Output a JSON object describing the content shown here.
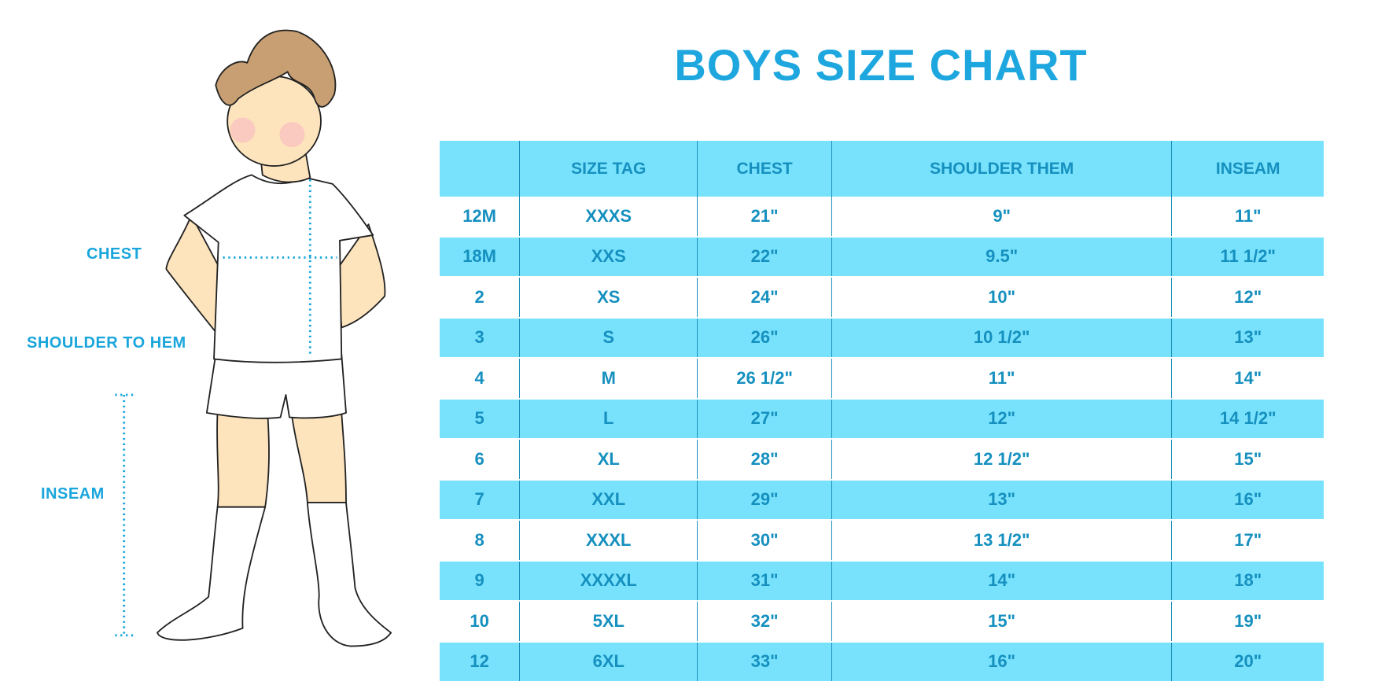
{
  "title": "BOYS SIZE CHART",
  "figure_labels": {
    "chest": "CHEST",
    "shoulder_to_hem": "SHOULDER TO HEM",
    "inseam": "INSEAM"
  },
  "colors": {
    "accent": "#1ea7df",
    "row_fill": "#78e2fc",
    "table_text": "#1590bf"
  },
  "table": {
    "headers": [
      "",
      "SIZE TAG",
      "CHEST",
      "SHOULDER THEM",
      "INSEAM"
    ],
    "rows": [
      [
        "12M",
        "XXXS",
        "21\"",
        "9\"",
        "11\""
      ],
      [
        "18M",
        "XXS",
        "22\"",
        "9.5\"",
        "11 1/2\""
      ],
      [
        "2",
        "XS",
        "24\"",
        "10\"",
        "12\""
      ],
      [
        "3",
        "S",
        "26\"",
        "10 1/2\"",
        "13\""
      ],
      [
        "4",
        "M",
        "26 1/2\"",
        "11\"",
        "14\""
      ],
      [
        "5",
        "L",
        "27\"",
        "12\"",
        "14 1/2\""
      ],
      [
        "6",
        "XL",
        "28\"",
        "12 1/2\"",
        "15\""
      ],
      [
        "7",
        "XXL",
        "29\"",
        "13\"",
        "16\""
      ],
      [
        "8",
        "XXXL",
        "30\"",
        "13 1/2\"",
        "17\""
      ],
      [
        "9",
        "XXXXL",
        "31\"",
        "14\"",
        "18\""
      ],
      [
        "10",
        "5XL",
        "32\"",
        "15\"",
        "19\""
      ],
      [
        "12",
        "6XL",
        "33\"",
        "16\"",
        "20\""
      ]
    ]
  }
}
